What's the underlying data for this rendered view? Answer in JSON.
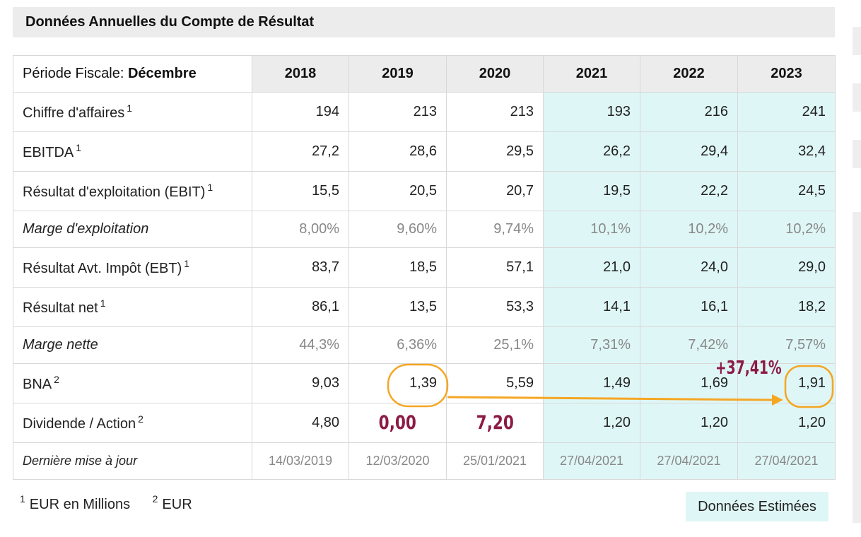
{
  "title": "Données Annuelles du Compte de Résultat",
  "period_label": "Période Fiscale: ",
  "period_value": "Décembre",
  "years": [
    "2018",
    "2019",
    "2020",
    "2021",
    "2022",
    "2023"
  ],
  "rows": [
    {
      "label": "Chiffre d'affaires",
      "note": "1",
      "values": [
        "194",
        "213",
        "213",
        "193",
        "216",
        "241"
      ]
    },
    {
      "label": "EBITDA",
      "note": "1",
      "values": [
        "27,2",
        "28,6",
        "29,5",
        "26,2",
        "29,4",
        "32,4"
      ]
    },
    {
      "label": "Résultat d'exploitation (EBIT)",
      "note": "1",
      "values": [
        "15,5",
        "20,5",
        "20,7",
        "19,5",
        "22,2",
        "24,5"
      ]
    },
    {
      "label": "Marge d'exploitation",
      "values": [
        "8,00%",
        "9,60%",
        "9,74%",
        "10,1%",
        "10,2%",
        "10,2%"
      ]
    },
    {
      "label": "Résultat Avt. Impôt (EBT)",
      "note": "1",
      "values": [
        "83,7",
        "18,5",
        "57,1",
        "21,0",
        "24,0",
        "29,0"
      ]
    },
    {
      "label": "Résultat net",
      "note": "1",
      "values": [
        "86,1",
        "13,5",
        "53,3",
        "14,1",
        "16,1",
        "18,2"
      ]
    },
    {
      "label": "Marge nette",
      "values": [
        "44,3%",
        "6,36%",
        "25,1%",
        "7,31%",
        "7,42%",
        "7,57%"
      ]
    },
    {
      "label": "BNA",
      "note": "2",
      "values": [
        "9,03",
        "1,39",
        "5,59",
        "1,49",
        "1,69",
        "1,91"
      ]
    },
    {
      "label": "Dividende / Action",
      "note": "2",
      "values": [
        "4,80",
        "0,00",
        "7,20",
        "1,20",
        "1,20",
        "1,20"
      ]
    },
    {
      "label": "Dernière mise à jour",
      "values": [
        "14/03/2019",
        "12/03/2020",
        "25/01/2021",
        "27/04/2021",
        "27/04/2021",
        "27/04/2021"
      ]
    }
  ],
  "footnotes": [
    {
      "mark": "1",
      "text": "EUR en Millions"
    },
    {
      "mark": "2",
      "text": "EUR"
    }
  ],
  "estimated_label": "Données Estimées",
  "annotation": "+37,41%",
  "colors": {
    "estimated_bg": "#dff6f6",
    "header_bg": "#ececec",
    "annotation_orange": "#f5a623",
    "highlight_red": "#8c1b45"
  }
}
